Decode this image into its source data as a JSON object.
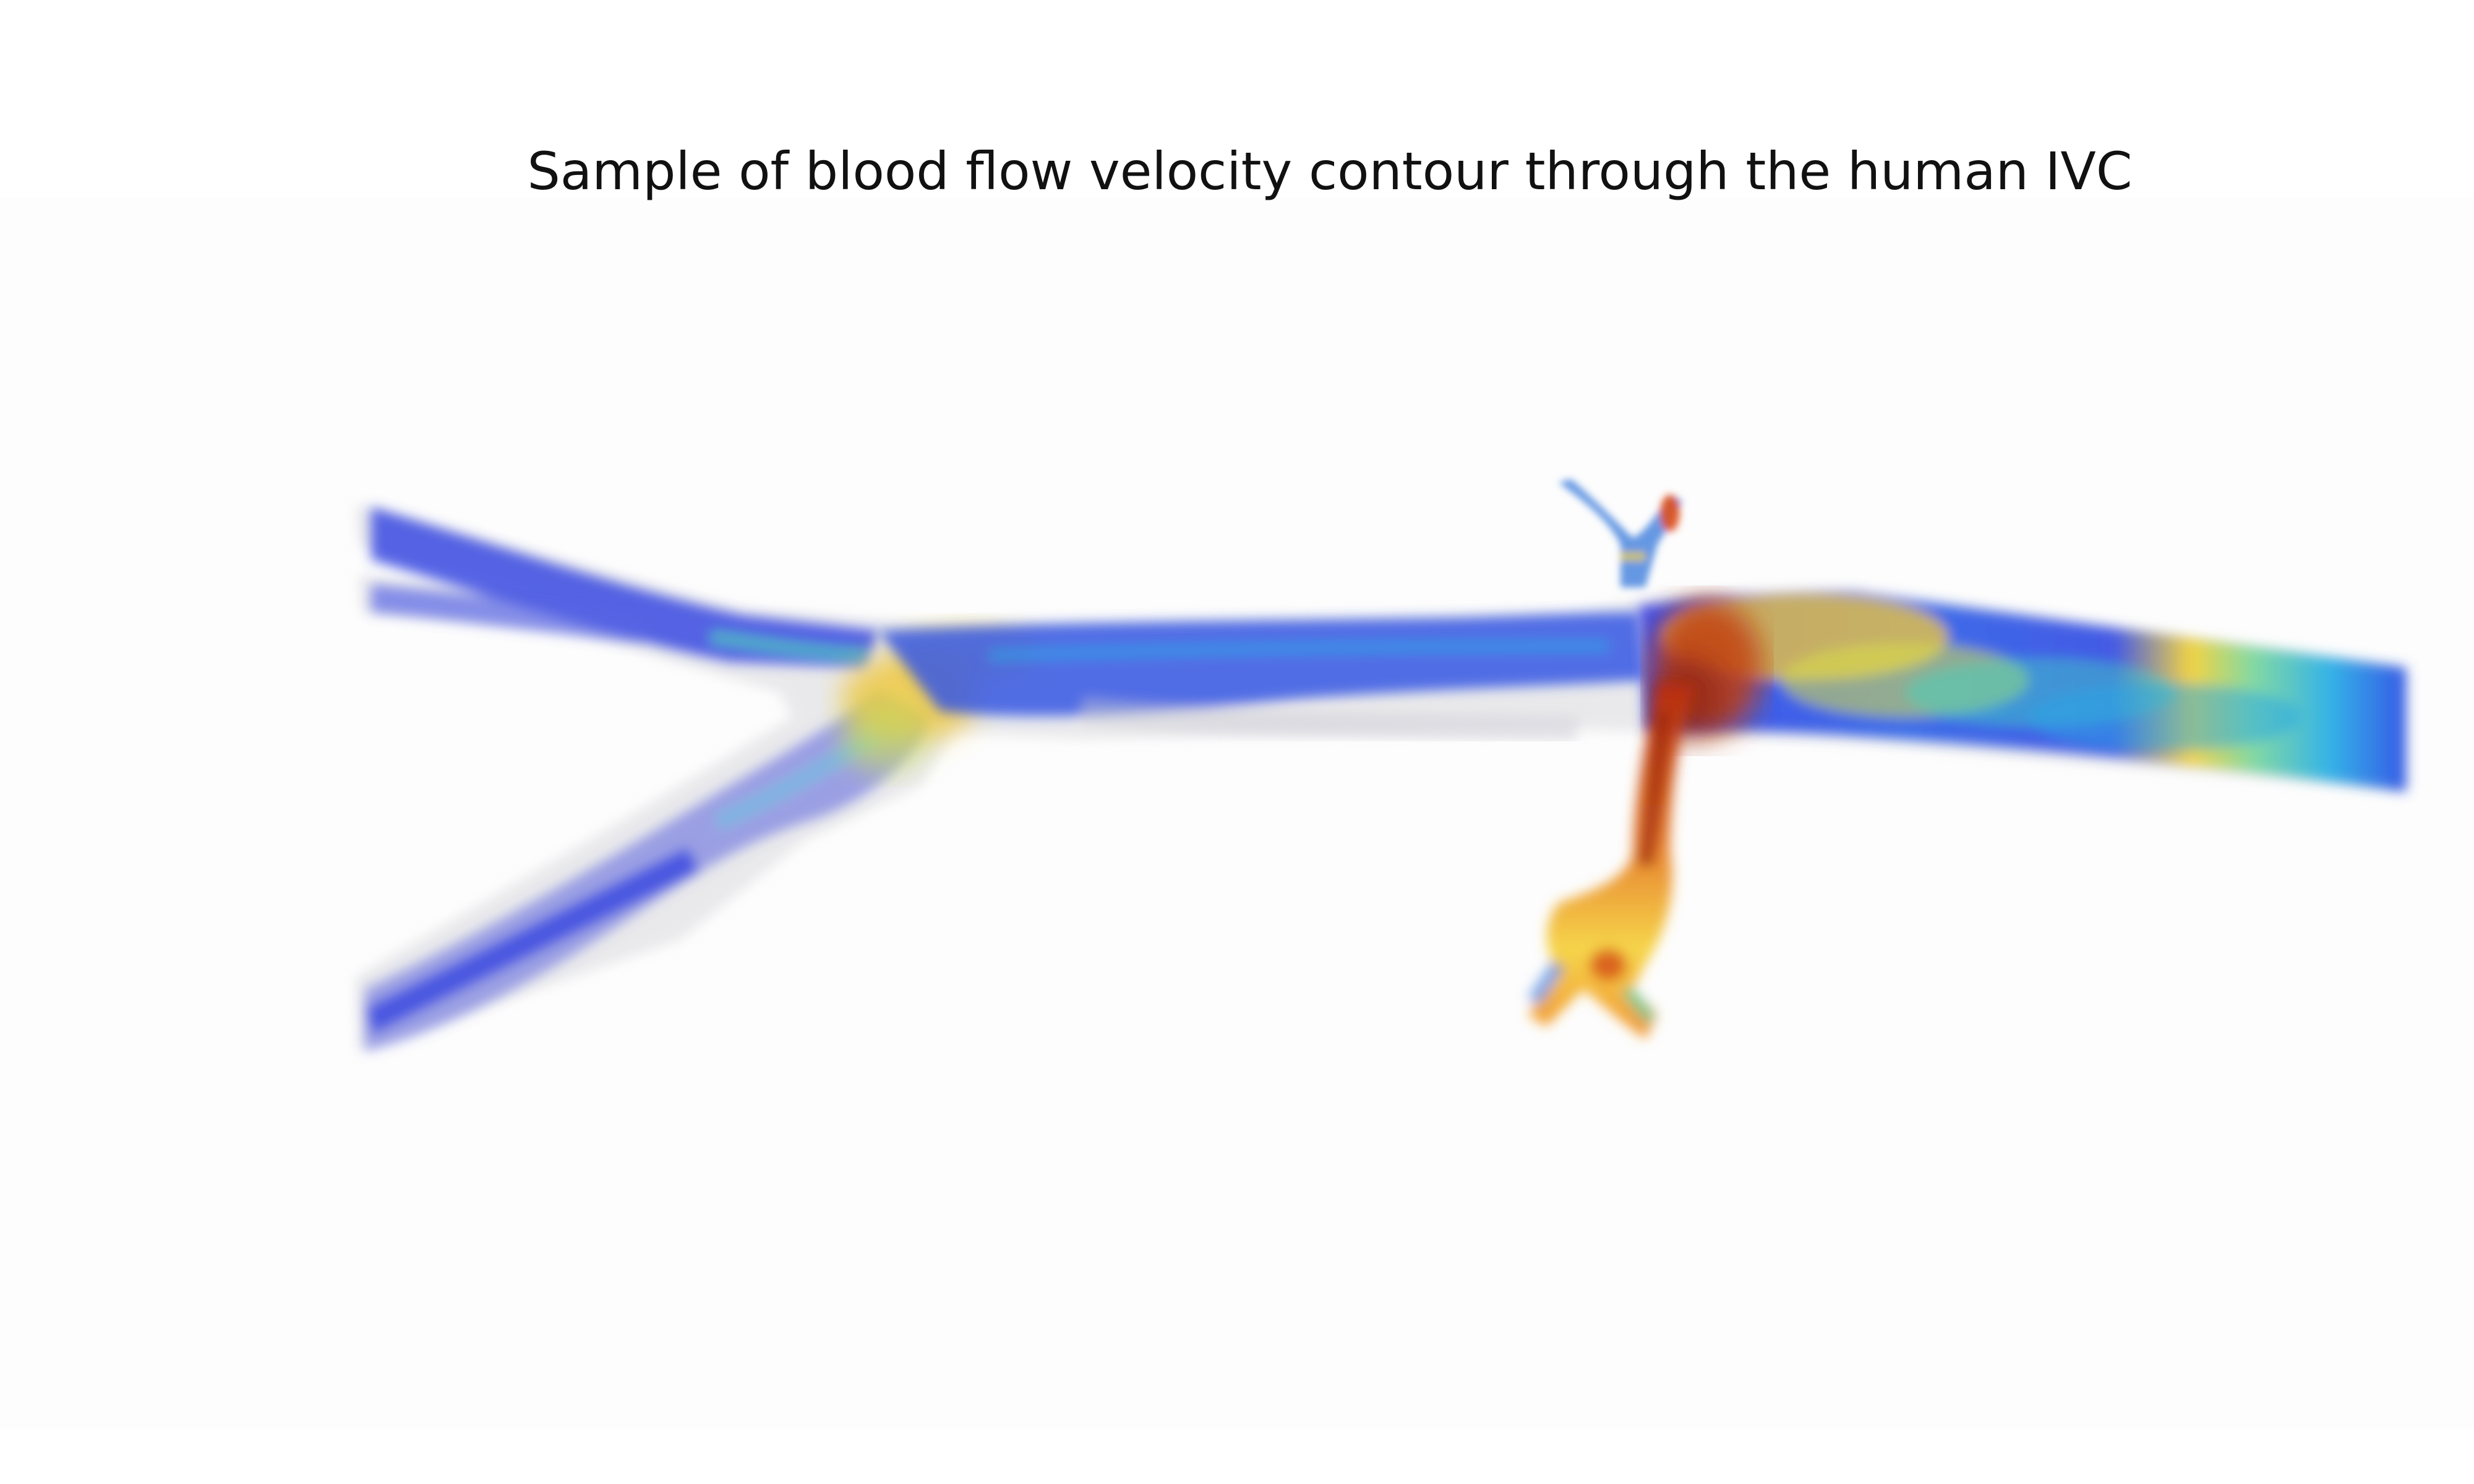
{
  "figure": {
    "title": "Sample of blood flow velocity contour through the human IVC"
  },
  "colors": {
    "low_velocity": "#2f3fe0",
    "mid_low_velocity": "#2aa8e8",
    "mid_velocity": "#3fd6c0",
    "mid_high_velocity": "#f4e040",
    "high_velocity": "#f08a1c",
    "peak_velocity": "#b0280e",
    "vessel_wall": "#d8d8dc",
    "background": "#fdfdfd"
  },
  "structures": [
    {
      "name": "common-iliac-veins",
      "velocity_color": "low_velocity"
    },
    {
      "name": "infrarenal-ivc",
      "velocity_color": "low_velocity"
    },
    {
      "name": "renal-veins",
      "velocity_color": "high_velocity"
    },
    {
      "name": "suprarenal-ivc",
      "velocity_color": "mid_high_velocity"
    }
  ]
}
